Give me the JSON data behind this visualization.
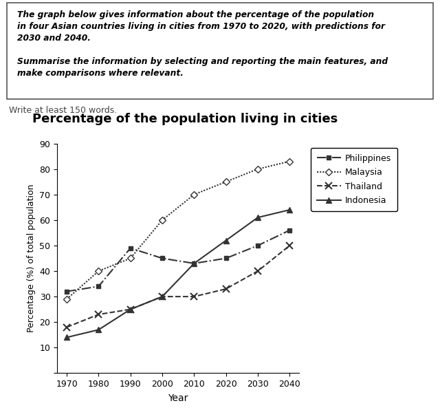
{
  "title": "Percentage of the population living in cities",
  "xlabel": "Year",
  "ylabel": "Percentage (%) of total population",
  "years": [
    1970,
    1980,
    1990,
    2000,
    2010,
    2020,
    2030,
    2040
  ],
  "philippines": [
    32,
    34,
    49,
    45,
    43,
    45,
    50,
    56
  ],
  "malaysia": [
    29,
    40,
    45,
    60,
    70,
    75,
    80,
    83
  ],
  "thailand": [
    18,
    23,
    25,
    30,
    30,
    33,
    40,
    50
  ],
  "indonesia": [
    14,
    17,
    25,
    30,
    43,
    52,
    61,
    64
  ],
  "ylim": [
    0,
    90
  ],
  "yticks": [
    0,
    10,
    20,
    30,
    40,
    50,
    60,
    70,
    80,
    90
  ],
  "color": "#333333",
  "box_line1": "The graph below gives information about the percentage of the population",
  "box_line2": "in four Asian countries living in cities from 1970 to 2020, with predictions for",
  "box_line3": "2030 and 2040.",
  "box_line4": "",
  "box_line5": "Summarise the information by selecting and reporting the main features, and",
  "box_line6": "make comparisons where relevant.",
  "below_box_text": "Write at least 150 words.",
  "legend_labels": [
    "Philippines",
    "Malaysia",
    "Thailand",
    "Indonesia"
  ]
}
